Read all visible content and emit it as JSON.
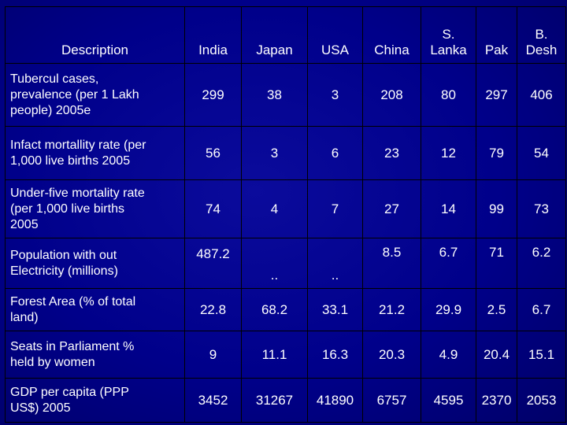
{
  "table": {
    "headers": [
      "Description",
      "India",
      "Japan",
      "USA",
      "China",
      "S. Lanka",
      "Pak",
      "B. Desh"
    ],
    "header_lines": {
      "sri_lanka": [
        "S.",
        "Lanka"
      ],
      "bangladesh": [
        "B.",
        "Desh"
      ]
    },
    "rows": [
      {
        "label_lines": [
          "Tubercul cases,",
          "prevalence (per 1 Lakh",
          "people) 2005e"
        ],
        "values": [
          "299",
          "38",
          "3",
          "208",
          "80",
          "297",
          "406"
        ]
      },
      {
        "label_lines": [
          "Infact mortallity rate (per",
          "1,000 live births 2005"
        ],
        "values": [
          "56",
          "3",
          "6",
          "23",
          "12",
          "79",
          "54"
        ]
      },
      {
        "label_lines": [
          "Under-five mortality rate",
          "(per 1,000 live births",
          "2005"
        ],
        "values": [
          "74",
          "4",
          "7",
          "27",
          "14",
          "99",
          "73"
        ]
      },
      {
        "label_lines": [
          "Population with out",
          "Electricity (millions)"
        ],
        "values": [
          "487.2",
          "..",
          "..",
          "8.5",
          "6.7",
          "71",
          "6.2"
        ]
      },
      {
        "label_lines": [
          "Forest Area (% of total",
          "land)"
        ],
        "values": [
          "22.8",
          "68.2",
          "33.1",
          "21.2",
          "29.9",
          "2.5",
          "6.7"
        ]
      },
      {
        "label_lines": [
          "Seats in Parliament %",
          "held by women"
        ],
        "values": [
          "9",
          "11.1",
          "16.3",
          "20.3",
          "4.9",
          "20.4",
          "15.1"
        ]
      },
      {
        "label_lines": [
          "GDP per capita (PPP",
          "US$) 2005"
        ],
        "values": [
          "3452",
          "31267",
          "41890",
          "6757",
          "4595",
          "2370",
          "2053"
        ]
      }
    ]
  },
  "colors": {
    "background": "#00007a",
    "text": "#ffffff",
    "grid": "#000000"
  }
}
